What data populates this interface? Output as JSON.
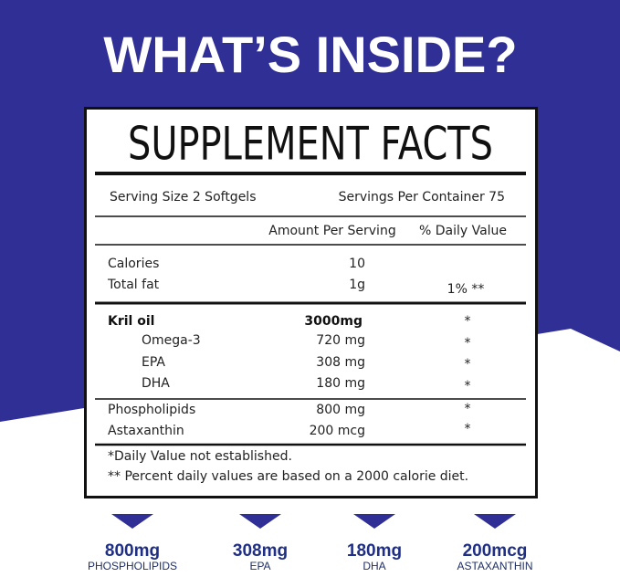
{
  "header": {
    "title": "WHAT’S INSIDE?"
  },
  "facts": {
    "title": "SUPPLEMENT FACTS",
    "serving_size": "Serving Size 2 Softgels",
    "servings_per_container": "Servings Per Container 75",
    "columns": [
      "Amount Per Serving",
      "% Daily Value"
    ],
    "nutrients": [
      {
        "name": "Calories",
        "amount": "10"
      },
      {
        "name": "Total fat",
        "amount": "1g",
        "daily_value": "1% **"
      },
      {
        "name": "Kril oil",
        "amount": "3000mg",
        "daily_value": "*"
      },
      {
        "name": "Omega-3",
        "amount": "720 mg",
        "daily_value": "*"
      },
      {
        "name": "EPA",
        "amount": "308 mg",
        "daily_value": "*"
      },
      {
        "name": "DHA",
        "amount": "180 mg",
        "daily_value": "*"
      },
      {
        "name": "Phospholipids",
        "amount": "800 mg",
        "daily_value": "*"
      },
      {
        "name": "Astaxanthin",
        "amount": "200 mcg",
        "daily_value": "*"
      }
    ],
    "footnotes": [
      "*Daily Value not established.",
      "** Percent daily values are based on a 2000 calorie diet."
    ]
  },
  "highlights": [
    {
      "value": "800mg",
      "label": "PHOSPHOLIPIDS"
    },
    {
      "value": "308mg",
      "label": "EPA"
    },
    {
      "value": "180mg",
      "label": "DHA"
    },
    {
      "value": "200mcg",
      "label": "ASTAXANTHIN"
    }
  ]
}
